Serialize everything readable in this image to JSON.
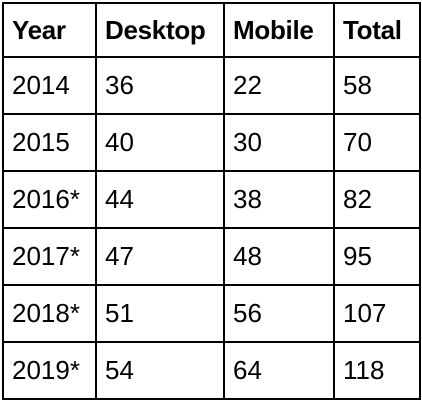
{
  "table": {
    "headers": [
      "Year",
      "Desktop",
      "Mobile",
      "Total"
    ],
    "rows": [
      [
        "2014",
        "36",
        "22",
        "58"
      ],
      [
        "2015",
        "40",
        "30",
        "70"
      ],
      [
        "2016*",
        "44",
        "38",
        "82"
      ],
      [
        "2017*",
        "47",
        "48",
        "95"
      ],
      [
        "2018*",
        "51",
        "56",
        "107"
      ],
      [
        "2019*",
        "54",
        "64",
        "118"
      ]
    ]
  }
}
